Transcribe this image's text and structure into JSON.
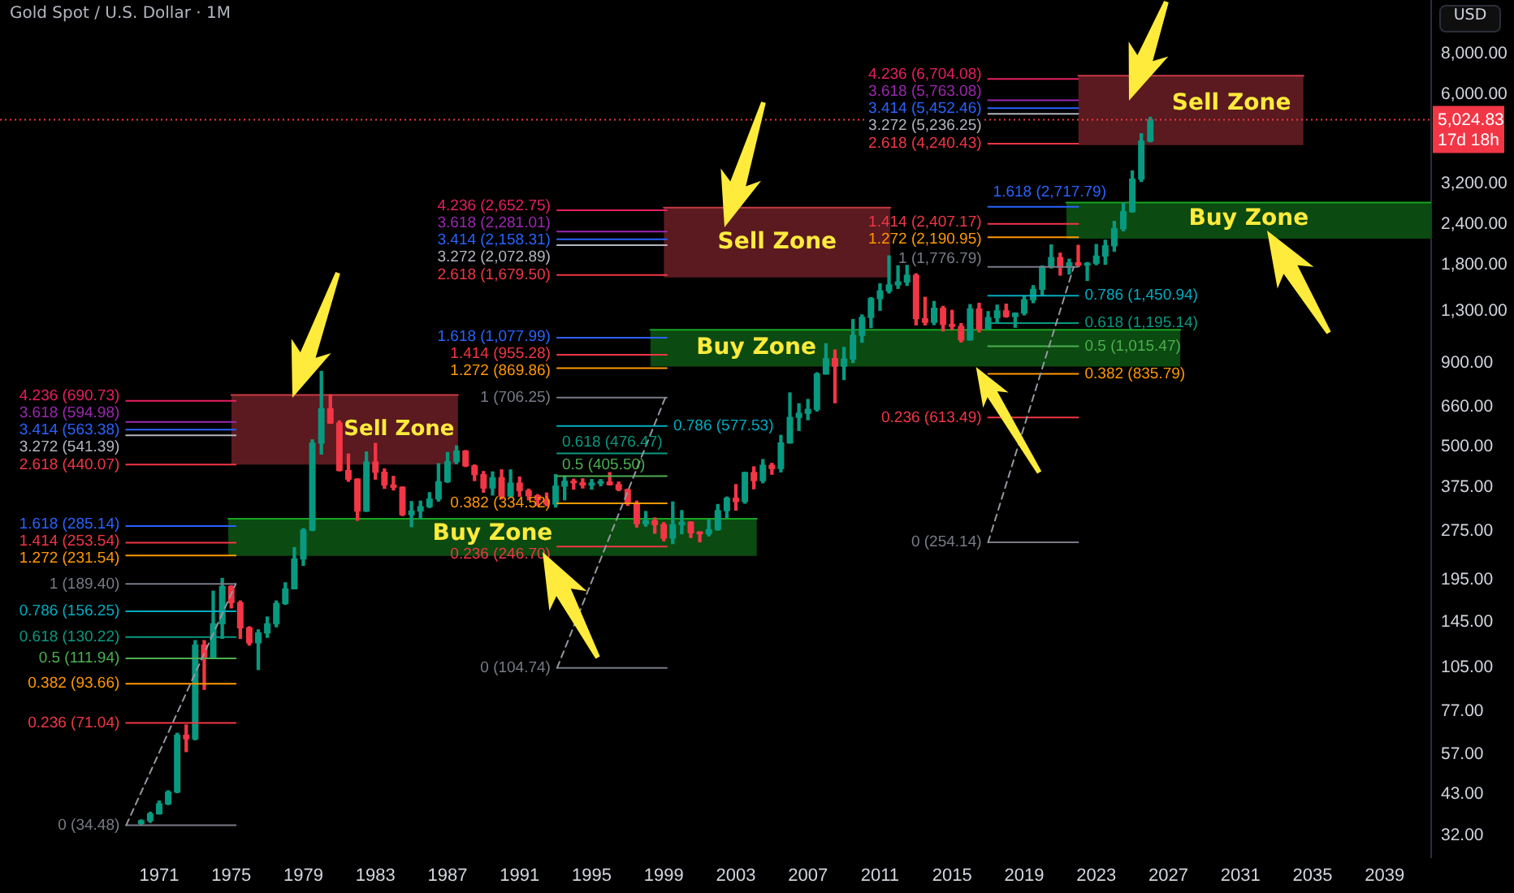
{
  "chart_data": {
    "type": "candlestick",
    "title": "Gold Spot / U.S. Dollar · 1M",
    "ylabel": "USD",
    "log": "y",
    "xlim": [
      "1962-03",
      "2041-08"
    ],
    "xticks": [
      "1971",
      "1975",
      "1979",
      "1983",
      "1987",
      "1991",
      "1995",
      "1999",
      "2003",
      "2007",
      "2011",
      "2015",
      "2019",
      "2023",
      "2027",
      "2031",
      "2035",
      "2039"
    ],
    "ylim": [
      27.5,
      11700
    ],
    "yticks": [
      {
        "value": 32,
        "label": "32.00"
      },
      {
        "value": 43,
        "label": "43.00"
      },
      {
        "value": 57,
        "label": "57.00"
      },
      {
        "value": 77,
        "label": "77.00"
      },
      {
        "value": 105,
        "label": "105.00"
      },
      {
        "value": 145,
        "label": "145.00"
      },
      {
        "value": 195,
        "label": "195.00"
      },
      {
        "value": 275,
        "label": "275.00"
      },
      {
        "value": 375,
        "label": "375.00"
      },
      {
        "value": 500,
        "label": "500.00"
      },
      {
        "value": 660,
        "label": "660.00"
      },
      {
        "value": 900,
        "label": "900.00"
      },
      {
        "value": 1300,
        "label": "1,300.00"
      },
      {
        "value": 1800,
        "label": "1,800.00"
      },
      {
        "value": 2400,
        "label": "2,400.00"
      },
      {
        "value": 3200,
        "label": "3,200.00"
      },
      {
        "value": 6000,
        "label": "6,000.00"
      },
      {
        "value": 8000,
        "label": "8,000.00"
      }
    ],
    "ref_lines": [
      {
        "axis": "y",
        "value": 5024.83,
        "label": "5,024.83",
        "color": "#f23645",
        "line_style": "dotted"
      }
    ],
    "annotations": [
      "17d 18h"
    ],
    "series": [
      {
        "x": [
          "1970-01",
          "1970-07",
          "1971-01",
          "1971-07",
          "1972-01",
          "1972-07",
          "1973-01",
          "1973-07",
          "1974-01",
          "1974-07",
          "1975-01",
          "1975-07",
          "1976-01",
          "1976-07",
          "1977-01",
          "1977-07",
          "1978-01",
          "1978-07",
          "1979-01",
          "1979-07",
          "1980-01",
          "1980-07",
          "1981-01",
          "1981-07",
          "1982-01",
          "1982-07",
          "1983-01",
          "1983-07",
          "1984-01",
          "1984-07",
          "1985-01",
          "1985-07",
          "1986-01",
          "1986-07",
          "1987-01",
          "1987-07",
          "1988-01",
          "1988-07",
          "1989-01",
          "1989-07",
          "1990-01",
          "1990-07",
          "1991-01",
          "1991-07",
          "1992-01",
          "1992-07",
          "1993-01",
          "1993-07",
          "1994-01",
          "1994-07",
          "1995-01",
          "1995-07",
          "1996-01",
          "1996-07",
          "1997-01",
          "1997-07",
          "1998-01",
          "1998-07",
          "1999-01",
          "1999-07",
          "2000-01",
          "2000-07",
          "2001-01",
          "2001-07",
          "2002-01",
          "2002-07",
          "2003-01",
          "2003-07",
          "2004-01",
          "2004-07",
          "2005-01",
          "2005-07",
          "2006-01",
          "2006-07",
          "2007-01",
          "2007-07",
          "2008-01",
          "2008-07",
          "2009-01",
          "2009-07",
          "2010-01",
          "2010-07",
          "2011-01",
          "2011-07",
          "2012-01",
          "2012-07",
          "2013-01",
          "2013-07",
          "2014-01",
          "2014-07",
          "2015-01",
          "2015-07",
          "2016-01",
          "2016-07",
          "2017-01",
          "2017-07",
          "2018-01",
          "2018-07",
          "2019-01",
          "2019-07",
          "2020-01",
          "2020-07",
          "2021-01",
          "2021-07",
          "2022-01",
          "2022-07",
          "2023-01",
          "2023-07",
          "2024-01",
          "2024-07",
          "2025-01",
          "2025-07",
          "2026-01"
        ],
        "ohlc": [
          [
            34.9,
            35.8,
            34.5,
            35.6
          ],
          [
            35.6,
            37.8,
            35.2,
            37.4
          ],
          [
            37.4,
            40.9,
            37.3,
            40.1
          ],
          [
            40.1,
            44,
            39.9,
            43.6
          ],
          [
            43.6,
            66,
            43.4,
            65.1
          ],
          [
            65.1,
            70,
            58,
            63.5
          ],
          [
            63.5,
            127,
            63,
            123
          ],
          [
            123,
            127,
            90,
            112
          ],
          [
            112,
            180,
            112,
            143
          ],
          [
            143,
            197,
            129,
            186
          ],
          [
            186,
            187,
            160,
            166
          ],
          [
            166,
            168,
            129,
            139
          ],
          [
            139,
            140,
            123,
            125
          ],
          [
            125,
            137,
            103.5,
            134
          ],
          [
            134,
            150,
            130,
            143
          ],
          [
            143,
            168,
            140,
            165
          ],
          [
            165,
            191,
            164,
            183
          ],
          [
            183,
            245,
            183,
            226
          ],
          [
            226,
            280,
            216,
            277
          ],
          [
            277,
            524,
            276,
            512
          ],
          [
            512,
            850,
            474,
            653
          ],
          [
            653,
            720,
            589,
            590
          ],
          [
            590,
            599,
            421,
            422
          ],
          [
            422,
            474,
            391,
            397
          ],
          [
            397,
            398,
            297,
            317
          ],
          [
            317,
            481,
            316,
            448
          ],
          [
            448,
            511,
            397,
            417
          ],
          [
            417,
            427,
            372,
            381
          ],
          [
            381,
            405,
            368,
            375
          ],
          [
            375,
            376,
            307,
            309
          ],
          [
            309,
            339,
            284,
            317
          ],
          [
            317,
            340,
            300,
            327
          ],
          [
            327,
            361,
            325,
            345
          ],
          [
            345,
            443,
            340,
            390
          ],
          [
            390,
            479,
            388,
            449
          ],
          [
            449,
            502,
            443,
            484
          ],
          [
            484,
            486,
            434,
            436
          ],
          [
            436,
            439,
            393,
            410
          ],
          [
            410,
            419,
            362,
            373
          ],
          [
            373,
            418,
            355,
            401
          ],
          [
            401,
            424,
            345,
            352
          ],
          [
            352,
            424,
            352,
            386
          ],
          [
            386,
            403,
            352,
            366
          ],
          [
            366,
            370,
            343,
            353
          ],
          [
            353,
            356,
            330,
            343
          ],
          [
            343,
            360,
            329,
            333
          ],
          [
            333,
            410,
            326,
            378
          ],
          [
            378,
            406,
            343,
            391
          ],
          [
            391,
            397,
            370,
            387
          ],
          [
            387,
            398,
            373,
            381
          ],
          [
            381,
            396,
            370,
            386
          ],
          [
            386,
            396,
            379,
            389
          ],
          [
            389,
            416,
            381,
            382
          ],
          [
            382,
            389,
            366,
            369
          ],
          [
            369,
            370,
            330,
            334
          ],
          [
            334,
            340,
            283,
            290
          ],
          [
            290,
            316,
            285,
            296
          ],
          [
            296,
            302,
            271,
            288
          ],
          [
            288,
            292,
            257,
            262
          ],
          [
            262,
            338,
            252,
            288
          ],
          [
            288,
            318,
            270,
            293
          ],
          [
            293,
            294,
            263,
            272
          ],
          [
            272,
            274,
            255,
            270
          ],
          [
            270,
            298,
            266,
            278
          ],
          [
            278,
            332,
            277,
            318
          ],
          [
            318,
            350,
            302,
            347
          ],
          [
            347,
            382,
            319,
            339
          ],
          [
            339,
            417,
            335,
            416
          ],
          [
            416,
            433,
            371,
            393
          ],
          [
            393,
            456,
            387,
            438
          ],
          [
            438,
            444,
            411,
            428
          ],
          [
            428,
            541,
            418,
            513
          ],
          [
            513,
            730,
            512,
            614
          ],
          [
            614,
            676,
            560,
            632
          ],
          [
            632,
            697,
            604,
            650
          ],
          [
            650,
            842,
            642,
            834
          ],
          [
            834,
            1033,
            834,
            930
          ],
          [
            930,
            988,
            681,
            882
          ],
          [
            882,
            1007,
            802,
            927
          ],
          [
            927,
            1226,
            905,
            1096
          ],
          [
            1096,
            1266,
            1044,
            1244
          ],
          [
            1244,
            1431,
            1157,
            1421
          ],
          [
            1421,
            1577,
            1308,
            1500
          ],
          [
            1500,
            1921,
            1478,
            1565
          ],
          [
            1565,
            1791,
            1527,
            1598
          ],
          [
            1598,
            1796,
            1560,
            1675
          ],
          [
            1675,
            1693,
            1180,
            1233
          ],
          [
            1233,
            1434,
            1180,
            1202
          ],
          [
            1202,
            1392,
            1182,
            1327
          ],
          [
            1327,
            1345,
            1131,
            1184
          ],
          [
            1184,
            1308,
            1142,
            1168
          ],
          [
            1168,
            1191,
            1046,
            1061
          ],
          [
            1061,
            1362,
            1061,
            1321
          ],
          [
            1321,
            1375,
            1123,
            1146
          ],
          [
            1146,
            1296,
            1146,
            1242
          ],
          [
            1242,
            1357,
            1205,
            1303
          ],
          [
            1303,
            1366,
            1246,
            1252
          ],
          [
            1252,
            1284,
            1160,
            1282
          ],
          [
            1282,
            1439,
            1266,
            1409
          ],
          [
            1409,
            1557,
            1380,
            1517
          ],
          [
            1517,
            1789,
            1451,
            1781
          ],
          [
            1781,
            2075,
            1764,
            1898
          ],
          [
            1898,
            1959,
            1677,
            1770
          ],
          [
            1770,
            1877,
            1690,
            1829
          ],
          [
            1829,
            2070,
            1781,
            1800
          ],
          [
            1800,
            1833,
            1615,
            1824
          ],
          [
            1824,
            2081,
            1805,
            1919
          ],
          [
            1919,
            2146,
            1810,
            2063
          ],
          [
            2063,
            2450,
            1984,
            2327
          ],
          [
            2327,
            2790,
            2293,
            2624
          ],
          [
            2624,
            3500,
            2614,
            3303
          ],
          [
            3303,
            4550,
            3248,
            4320
          ],
          [
            4320,
            5110,
            4300,
            5024.83
          ]
        ],
        "colors": [
          "#089981",
          "#089981",
          "#089981",
          "#089981",
          "#089981",
          "#f23645",
          "#089981",
          "#f23645",
          "#089981",
          "#089981",
          "#f23645",
          "#f23645",
          "#f23645",
          "#089981",
          "#089981",
          "#089981",
          "#089981",
          "#089981",
          "#089981",
          "#089981",
          "#089981",
          "#f23645",
          "#f23645",
          "#f23645",
          "#f23645",
          "#089981",
          "#f23645",
          "#f23645",
          "#f23645",
          "#f23645",
          "#089981",
          "#089981",
          "#089981",
          "#089981",
          "#089981",
          "#089981",
          "#f23645",
          "#f23645",
          "#f23645",
          "#089981",
          "#f23645",
          "#089981",
          "#f23645",
          "#f23645",
          "#f23645",
          "#f23645",
          "#089981",
          "#089981",
          "#f23645",
          "#f23645",
          "#089981",
          "#089981",
          "#f23645",
          "#f23645",
          "#f23645",
          "#f23645",
          "#089981",
          "#f23645",
          "#f23645",
          "#089981",
          "#089981",
          "#f23645",
          "#f23645",
          "#089981",
          "#089981",
          "#089981",
          "#f23645",
          "#089981",
          "#f23645",
          "#089981",
          "#f23645",
          "#089981",
          "#089981",
          "#089981",
          "#089981",
          "#089981",
          "#089981",
          "#f23645",
          "#089981",
          "#089981",
          "#089981",
          "#089981",
          "#089981",
          "#089981",
          "#089981",
          "#089981",
          "#f23645",
          "#f23645",
          "#089981",
          "#f23645",
          "#f23645",
          "#f23645",
          "#089981",
          "#f23645",
          "#089981",
          "#089981",
          "#f23645",
          "#089981",
          "#089981",
          "#089981",
          "#089981",
          "#089981",
          "#f23645",
          "#089981",
          "#f23645",
          "#089981",
          "#089981",
          "#089981",
          "#089981",
          "#089981",
          "#089981",
          "#089981",
          "#089981"
        ]
      },
      {
        "type": "line",
        "name": "Sell Zone",
        "color": "#c83a45",
        "x": [
          "1975-01",
          "1987-08"
        ],
        "values": [
          720,
          720
        ],
        "lower": [
          440,
          440
        ],
        "upper": [
          720,
          720
        ]
      },
      {
        "type": "line",
        "name": "Buy Zone",
        "color": "#18a424",
        "x": [
          "1974-11",
          "2004-03"
        ],
        "values": [
          300,
          300
        ],
        "lower": [
          231,
          231
        ],
        "upper": [
          300,
          300
        ]
      },
      {
        "type": "line",
        "name": "Sell Zone",
        "color": "#c83a45",
        "x": [
          "1999-01",
          "2011-08"
        ],
        "values": [
          2700,
          2700
        ],
        "lower": [
          1650,
          1650
        ],
        "upper": [
          2700,
          2700
        ]
      },
      {
        "type": "line",
        "name": "Buy Zone",
        "color": "#18a424",
        "x": [
          "1998-04",
          "2027-09"
        ],
        "values": [
          1140,
          1140
        ],
        "lower": [
          880,
          880
        ],
        "upper": [
          1140,
          1140
        ]
      },
      {
        "type": "line",
        "name": "Sell Zone",
        "color": "#c83a45",
        "x": [
          "2022-01",
          "2034-07"
        ],
        "values": [
          6860,
          6860
        ],
        "lower": [
          4200,
          4200
        ],
        "upper": [
          6860,
          6860
        ]
      },
      {
        "type": "line",
        "name": "Buy Zone",
        "color": "#18a424",
        "x": [
          "2021-05",
          "2041-08"
        ],
        "values": [
          2800,
          2800
        ],
        "lower": [
          2170,
          2170
        ],
        "upper": [
          2800,
          2800
        ]
      },
      {
        "type": "line",
        "color": "#9598a1",
        "line_style": "dashed",
        "x": [
          "1969-03",
          "1975-04"
        ],
        "values": [
          34.48,
          189.4
        ]
      },
      {
        "type": "line",
        "color": "#9598a1",
        "line_style": "dashed",
        "x": [
          "1993-02",
          "1999-02"
        ],
        "values": [
          104.74,
          706.25
        ]
      },
      {
        "type": "line",
        "color": "#9598a1",
        "line_style": "dashed",
        "x": [
          "2017-01",
          "2021-10"
        ],
        "values": [
          254.14,
          1776.79
        ]
      },
      {
        "type": "line",
        "name": "4.236 (690.73)",
        "color": "#e91e63",
        "x": [
          "1969-03",
          "1975-04"
        ],
        "values": [
          690.73,
          690.73
        ]
      },
      {
        "type": "line",
        "name": "3.618 (594.98)",
        "color": "#9c27b0",
        "x": [
          "1969-03",
          "1975-04"
        ],
        "values": [
          594.98,
          594.98
        ]
      },
      {
        "type": "line",
        "name": "3.414 (563.38)",
        "color": "#2962ff",
        "x": [
          "1969-03",
          "1975-04"
        ],
        "values": [
          563.38,
          563.38
        ]
      },
      {
        "type": "line",
        "name": "3.272 (541.39)",
        "color": "#b2b5be",
        "x": [
          "1969-03",
          "1975-04"
        ],
        "values": [
          541.39,
          541.39
        ]
      },
      {
        "type": "line",
        "name": "2.618 (440.07)",
        "color": "#f23645",
        "x": [
          "1969-03",
          "1975-04"
        ],
        "values": [
          440.07,
          440.07
        ]
      },
      {
        "type": "line",
        "name": "1.618 (285.14)",
        "color": "#2962ff",
        "x": [
          "1969-03",
          "1975-04"
        ],
        "values": [
          285.14,
          285.14
        ]
      },
      {
        "type": "line",
        "name": "1.414 (253.54)",
        "color": "#f23645",
        "x": [
          "1969-03",
          "1975-04"
        ],
        "values": [
          253.54,
          253.54
        ]
      },
      {
        "type": "line",
        "name": "1.272 (231.54)",
        "color": "#ff9800",
        "x": [
          "1969-03",
          "1975-04"
        ],
        "values": [
          231.54,
          231.54
        ]
      },
      {
        "type": "line",
        "name": "1 (189.40)",
        "color": "#787b86",
        "x": [
          "1969-03",
          "1975-04"
        ],
        "values": [
          189.4,
          189.4
        ]
      },
      {
        "type": "line",
        "name": "0.786 (156.25)",
        "color": "#00acc1",
        "x": [
          "1969-03",
          "1975-04"
        ],
        "values": [
          156.25,
          156.25
        ]
      },
      {
        "type": "line",
        "name": "0.618 (130.22)",
        "color": "#089981",
        "x": [
          "1969-03",
          "1975-04"
        ],
        "values": [
          130.22,
          130.22
        ]
      },
      {
        "type": "line",
        "name": "0.5 (111.94)",
        "color": "#4caf50",
        "x": [
          "1969-03",
          "1975-04"
        ],
        "values": [
          111.94,
          111.94
        ]
      },
      {
        "type": "line",
        "name": "0.382 (93.66)",
        "color": "#ff9800",
        "x": [
          "1969-03",
          "1975-04"
        ],
        "values": [
          93.66,
          93.66
        ]
      },
      {
        "type": "line",
        "name": "0.236 (71.04)",
        "color": "#f23645",
        "x": [
          "1969-03",
          "1975-04"
        ],
        "values": [
          71.04,
          71.04
        ]
      },
      {
        "type": "line",
        "name": "0 (34.48)",
        "color": "#787b86",
        "x": [
          "1969-03",
          "1975-04"
        ],
        "values": [
          34.48,
          34.48
        ]
      },
      {
        "type": "line",
        "name": "4.236 (2,652.75)",
        "color": "#e91e63",
        "x": [
          "1993-02",
          "1999-03"
        ],
        "values": [
          2652.75,
          2652.75
        ]
      },
      {
        "type": "line",
        "name": "3.618 (2,281.01)",
        "color": "#9c27b0",
        "x": [
          "1993-02",
          "1999-03"
        ],
        "values": [
          2281.01,
          2281.01
        ]
      },
      {
        "type": "line",
        "name": "3.414 (2,158.31)",
        "color": "#2962ff",
        "x": [
          "1993-02",
          "1999-03"
        ],
        "values": [
          2158.31,
          2158.31
        ]
      },
      {
        "type": "line",
        "name": "3.272 (2,072.89)",
        "color": "#b2b5be",
        "x": [
          "1993-02",
          "1999-03"
        ],
        "values": [
          2072.89,
          2072.89
        ]
      },
      {
        "type": "line",
        "name": "2.618 (1,679.50)",
        "color": "#f23645",
        "x": [
          "1993-02",
          "1999-03"
        ],
        "values": [
          1679.5,
          1679.5
        ]
      },
      {
        "type": "line",
        "name": "1.618 (1,077.99)",
        "color": "#2962ff",
        "x": [
          "1993-02",
          "1999-03"
        ],
        "values": [
          1077.99,
          1077.99
        ]
      },
      {
        "type": "line",
        "name": "1.414 (955.28)",
        "color": "#f23645",
        "x": [
          "1993-02",
          "1999-03"
        ],
        "values": [
          955.28,
          955.28
        ]
      },
      {
        "type": "line",
        "name": "1.272 (869.86)",
        "color": "#ff9800",
        "x": [
          "1993-02",
          "1999-03"
        ],
        "values": [
          869.86,
          869.86
        ]
      },
      {
        "type": "line",
        "name": "1 (706.25)",
        "color": "#787b86",
        "x": [
          "1993-02",
          "1999-03"
        ],
        "values": [
          706.25,
          706.25
        ]
      },
      {
        "type": "line",
        "name": "0.786 (577.53)",
        "color": "#00acc1",
        "x": [
          "1993-02",
          "1999-03"
        ],
        "values": [
          577.53,
          577.53
        ]
      },
      {
        "type": "line",
        "name": "0.618 (476.47)",
        "color": "#089981",
        "x": [
          "1993-02",
          "1999-03"
        ],
        "values": [
          476.47,
          476.47
        ]
      },
      {
        "type": "line",
        "name": "0.5 (405.50)",
        "color": "#4caf50",
        "x": [
          "1993-02",
          "1999-03"
        ],
        "values": [
          405.5,
          405.5
        ]
      },
      {
        "type": "line",
        "name": "0.382 (334.52)",
        "color": "#ff9800",
        "x": [
          "1993-02",
          "1999-03"
        ],
        "values": [
          334.52,
          334.52
        ]
      },
      {
        "type": "line",
        "name": "0.236 (246.70)",
        "color": "#f23645",
        "x": [
          "1993-02",
          "1999-03"
        ],
        "values": [
          246.7,
          246.7
        ]
      },
      {
        "type": "line",
        "name": "0 (104.74)",
        "color": "#787b86",
        "x": [
          "1993-02",
          "1999-03"
        ],
        "values": [
          104.74,
          104.74
        ]
      },
      {
        "type": "line",
        "name": "4.236 (6,704.08)",
        "color": "#e91e63",
        "x": [
          "2017-01",
          "2022-01"
        ],
        "values": [
          6704.08,
          6704.08
        ]
      },
      {
        "type": "line",
        "name": "3.618 (5,763.08)",
        "color": "#9c27b0",
        "x": [
          "2017-01",
          "2022-01"
        ],
        "values": [
          5763.08,
          5763.08
        ]
      },
      {
        "type": "line",
        "name": "3.414 (5,452.46)",
        "color": "#2962ff",
        "x": [
          "2017-01",
          "2022-01"
        ],
        "values": [
          5452.46,
          5452.46
        ]
      },
      {
        "type": "line",
        "name": "3.272 (5,236.25)",
        "color": "#b2b5be",
        "x": [
          "2017-01",
          "2022-01"
        ],
        "values": [
          5236.25,
          5236.25
        ]
      },
      {
        "type": "line",
        "name": "2.618 (4,240.43)",
        "color": "#f23645",
        "x": [
          "2017-01",
          "2022-01"
        ],
        "values": [
          4240.43,
          4240.43
        ]
      },
      {
        "type": "line",
        "name": "1.618 (2,717.79)",
        "color": "#2962ff",
        "x": [
          "2017-01",
          "2022-01"
        ],
        "values": [
          2717.79,
          2717.79
        ]
      },
      {
        "type": "line",
        "name": "1.414 (2,407.17)",
        "color": "#f23645",
        "x": [
          "2017-01",
          "2022-01"
        ],
        "values": [
          2407.17,
          2407.17
        ]
      },
      {
        "type": "line",
        "name": "1.272 (2,190.95)",
        "color": "#ff9800",
        "x": [
          "2017-01",
          "2022-01"
        ],
        "values": [
          2190.95,
          2190.95
        ]
      },
      {
        "type": "line",
        "name": "1 (1,776.79)",
        "color": "#787b86",
        "x": [
          "2017-01",
          "2022-01"
        ],
        "values": [
          1776.79,
          1776.79
        ]
      },
      {
        "type": "line",
        "name": "0.786 (1,450.94)",
        "color": "#00acc1",
        "x": [
          "2017-01",
          "2022-01"
        ],
        "values": [
          1450.94,
          1450.94
        ]
      },
      {
        "type": "line",
        "name": "0.618 (1,195.14)",
        "color": "#089981",
        "x": [
          "2017-01",
          "2022-01"
        ],
        "values": [
          1195.14,
          1195.14
        ]
      },
      {
        "type": "line",
        "name": "0.5 (1,015.47)",
        "color": "#4caf50",
        "x": [
          "2017-01",
          "2022-01"
        ],
        "values": [
          1015.47,
          1015.47
        ]
      },
      {
        "type": "line",
        "name": "0.382 (835.79)",
        "color": "#ff9800",
        "x": [
          "2017-01",
          "2022-01"
        ],
        "values": [
          835.79,
          835.79
        ]
      },
      {
        "type": "line",
        "name": "0.236 (613.49)",
        "color": "#f23645",
        "x": [
          "2017-01",
          "2022-01"
        ],
        "values": [
          613.49,
          613.49
        ]
      },
      {
        "type": "line",
        "name": "0 (254.14)",
        "color": "#787b86",
        "x": [
          "2017-01",
          "2022-01"
        ],
        "values": [
          254.14,
          254.14
        ]
      }
    ]
  }
}
